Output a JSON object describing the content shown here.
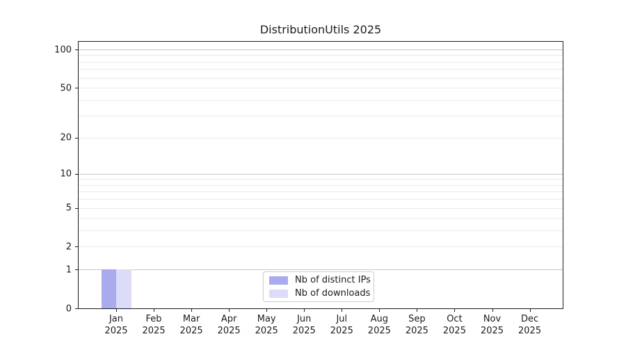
{
  "chart_data": {
    "type": "bar",
    "title": "DistributionUtils 2025",
    "categories": [
      "Jan",
      "Feb",
      "Mar",
      "Apr",
      "May",
      "Jun",
      "Jul",
      "Aug",
      "Sep",
      "Oct",
      "Nov",
      "Dec"
    ],
    "x_year_label": "2025",
    "series": [
      {
        "name": "Nb of distinct IPs",
        "color": "#aaaaee",
        "values": [
          1,
          0,
          0,
          0,
          0,
          0,
          0,
          0,
          0,
          0,
          0,
          0
        ]
      },
      {
        "name": "Nb of downloads",
        "color": "#dcdcf8",
        "values": [
          1,
          0,
          0,
          0,
          0,
          0,
          0,
          0,
          0,
          0,
          0,
          0
        ]
      }
    ],
    "yscale": "log1p",
    "ylim": [
      0,
      100
    ],
    "yticks": [
      0,
      1,
      2,
      5,
      10,
      20,
      50,
      100
    ],
    "gridlines": {
      "major": [
        1,
        10,
        100
      ],
      "minor": [
        2,
        3,
        4,
        5,
        6,
        7,
        8,
        9,
        20,
        30,
        40,
        50,
        60,
        70,
        80,
        90
      ]
    },
    "grid": true,
    "legend_position": "bottom-center",
    "legend_items": [
      "Nb of distinct IPs",
      "Nb of downloads"
    ]
  },
  "colors": {
    "background": "#ffffff",
    "axis": "#1a1a1a",
    "text": "#1a1a1a",
    "grid_major": "#c6c6c6",
    "grid_minor": "#e9e9e9",
    "bar_distinct_ips": "#aaaaee",
    "bar_downloads": "#dcdcf8",
    "legend_border": "#cccccc"
  }
}
